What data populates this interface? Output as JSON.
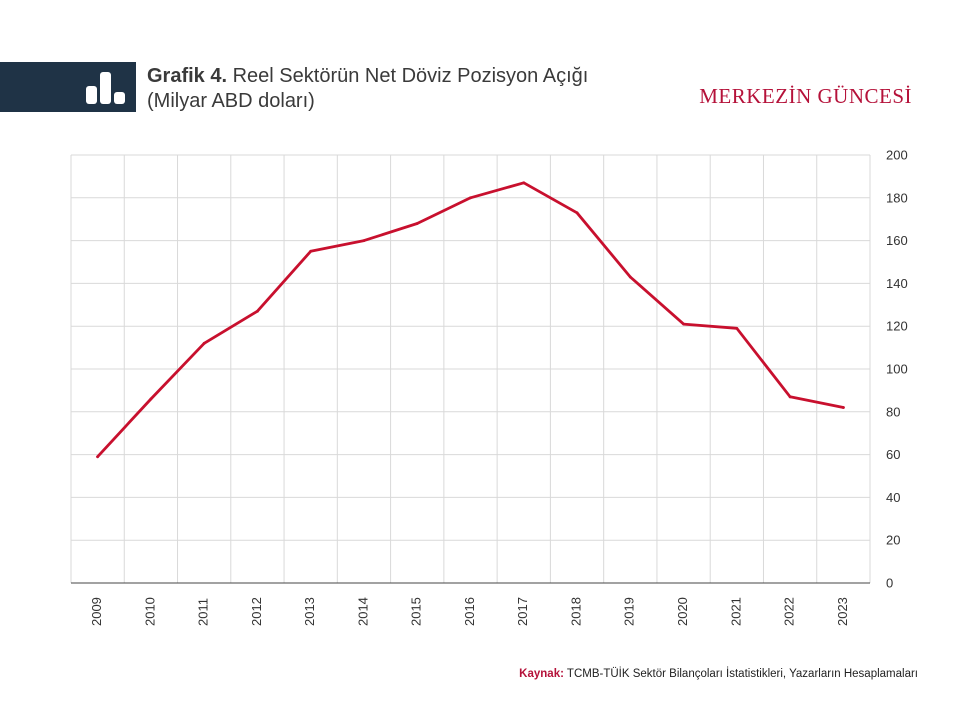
{
  "header": {
    "title_bold": "Grafik 4.",
    "title_rest": "Reel Sektörün Net Döviz Pozisyon Açığı",
    "subtitle": "(Milyar ABD doları)",
    "brand": "MERKEZİN GÜNCESİ",
    "icon": "bar-chart-icon"
  },
  "chart_data": {
    "type": "line",
    "title": "Reel Sektörün Net Döviz Pozisyon Açığı",
    "xlabel": "",
    "ylabel": "",
    "x": [
      "2009",
      "2010",
      "2011",
      "2012",
      "2013",
      "2014",
      "2015",
      "2016",
      "2017",
      "2018",
      "2019",
      "2020",
      "2021",
      "2022",
      "2023"
    ],
    "series": [
      {
        "values": [
          59,
          86,
          112,
          127,
          155,
          160,
          168,
          180,
          187,
          173,
          143,
          121,
          119,
          87,
          82
        ],
        "color": "#c8102e"
      }
    ],
    "ylim": [
      0,
      200
    ],
    "yticks": [
      0,
      20,
      40,
      60,
      80,
      100,
      120,
      140,
      160,
      180,
      200
    ],
    "grid": true,
    "y_axis_side": "right",
    "x_tick_rotation": "vertical"
  },
  "source": {
    "label": "Kaynak:",
    "text": "TCMB-TÜİK Sektör Bilançoları İstatistikleri, Yazarların Hesaplamaları"
  },
  "colors": {
    "accent": "#c8102e",
    "header_bar": "#1f3346",
    "grid": "#d9d9d9"
  }
}
